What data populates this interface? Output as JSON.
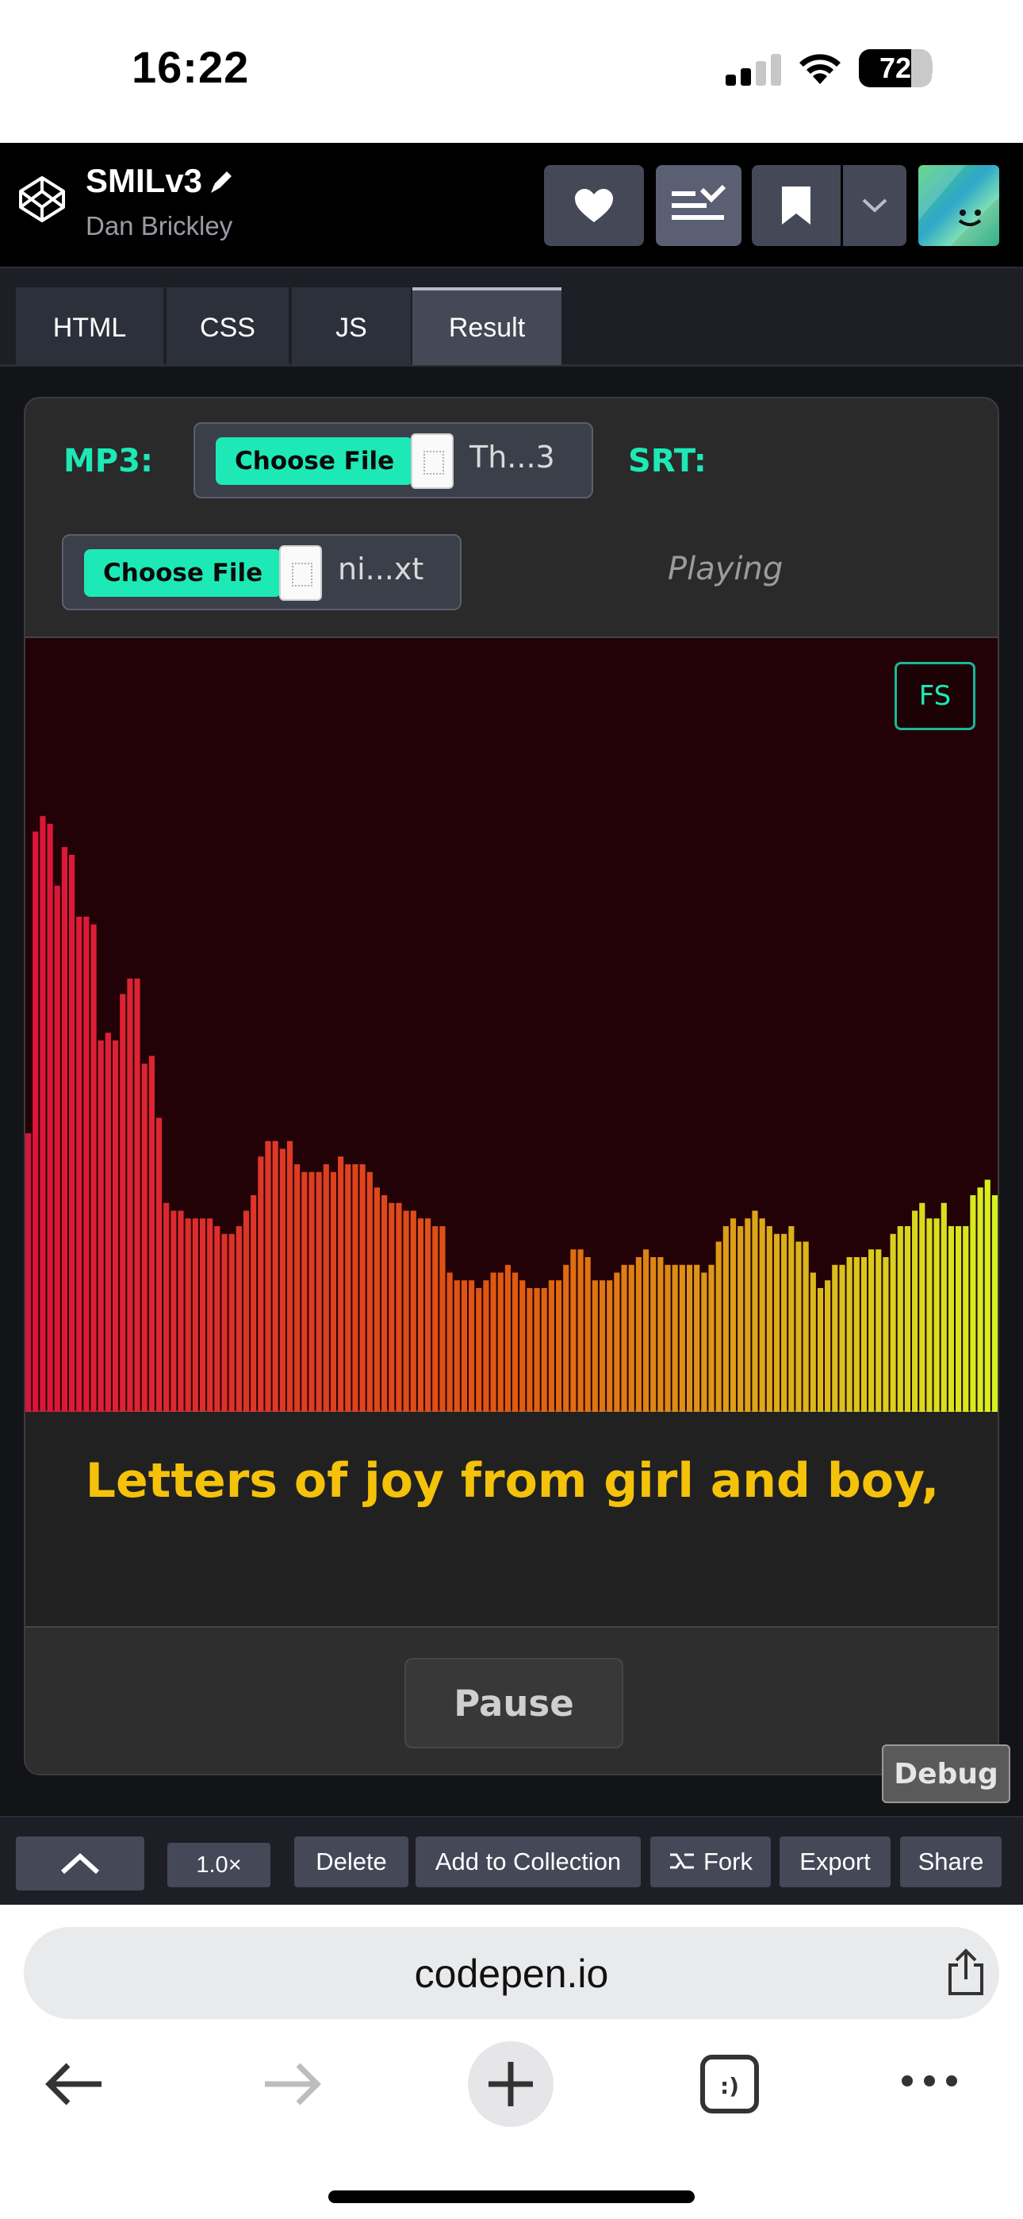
{
  "status_bar": {
    "time": "16:22",
    "battery": "72",
    "battery_level": 0.72
  },
  "pen": {
    "title": "SMILv3",
    "author": "Dan Brickley"
  },
  "tabs": [
    {
      "label": "HTML"
    },
    {
      "label": "CSS"
    },
    {
      "label": "JS"
    },
    {
      "label": "Result"
    }
  ],
  "active_tab": "Result",
  "player": {
    "mp3_label": "MP3:",
    "srt_label": "SRT:",
    "mp3_file": {
      "button": "Choose File",
      "name": "Th...3"
    },
    "srt_file": {
      "button": "Choose File",
      "name": "ni...xt"
    },
    "status": "Playing",
    "fs_label": "FS",
    "lyric": "Letters of joy from girl and boy,",
    "pause_label": "Pause",
    "debug_label": "Debug"
  },
  "spectrum": {
    "max": 1.0,
    "colors": {
      "low_freq": "#dc143c",
      "mid_freq": "#e05a10",
      "high_freq": "#d8f020",
      "background": "#220206"
    },
    "levels": [
      0.36,
      0.75,
      0.77,
      0.76,
      0.68,
      0.73,
      0.72,
      0.64,
      0.64,
      0.63,
      0.48,
      0.49,
      0.48,
      0.54,
      0.56,
      0.56,
      0.45,
      0.46,
      0.38,
      0.27,
      0.26,
      0.26,
      0.25,
      0.25,
      0.25,
      0.25,
      0.24,
      0.23,
      0.23,
      0.24,
      0.26,
      0.28,
      0.33,
      0.35,
      0.35,
      0.34,
      0.35,
      0.32,
      0.31,
      0.31,
      0.31,
      0.32,
      0.31,
      0.33,
      0.32,
      0.32,
      0.32,
      0.31,
      0.29,
      0.28,
      0.27,
      0.27,
      0.26,
      0.26,
      0.25,
      0.25,
      0.24,
      0.24,
      0.18,
      0.17,
      0.17,
      0.17,
      0.16,
      0.17,
      0.18,
      0.18,
      0.19,
      0.18,
      0.17,
      0.16,
      0.16,
      0.16,
      0.17,
      0.17,
      0.19,
      0.21,
      0.21,
      0.2,
      0.17,
      0.17,
      0.17,
      0.18,
      0.19,
      0.19,
      0.2,
      0.21,
      0.2,
      0.2,
      0.19,
      0.19,
      0.19,
      0.19,
      0.19,
      0.18,
      0.19,
      0.22,
      0.24,
      0.25,
      0.24,
      0.25,
      0.26,
      0.25,
      0.24,
      0.23,
      0.23,
      0.24,
      0.22,
      0.22,
      0.18,
      0.16,
      0.17,
      0.19,
      0.19,
      0.2,
      0.2,
      0.2,
      0.21,
      0.21,
      0.2,
      0.23,
      0.24,
      0.24,
      0.26,
      0.27,
      0.25,
      0.25,
      0.27,
      0.24,
      0.24,
      0.24,
      0.28,
      0.29,
      0.3,
      0.28
    ]
  },
  "footer": {
    "zoom": "1.0×",
    "buttons": [
      "Delete",
      "Add to Collection",
      "Fork",
      "Export",
      "Share"
    ]
  },
  "browser": {
    "url": "codepen.io"
  }
}
